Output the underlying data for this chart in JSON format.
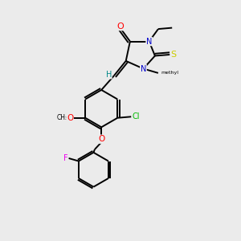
{
  "background_color": "#ebebeb",
  "bond_color": "#000000",
  "atom_colors": {
    "O": "#ff0000",
    "N": "#0000cc",
    "S": "#cccc00",
    "Cl": "#00bb00",
    "F": "#ee00ee",
    "H": "#008888",
    "C": "#000000"
  },
  "figsize": [
    3.0,
    3.0
  ],
  "dpi": 100
}
